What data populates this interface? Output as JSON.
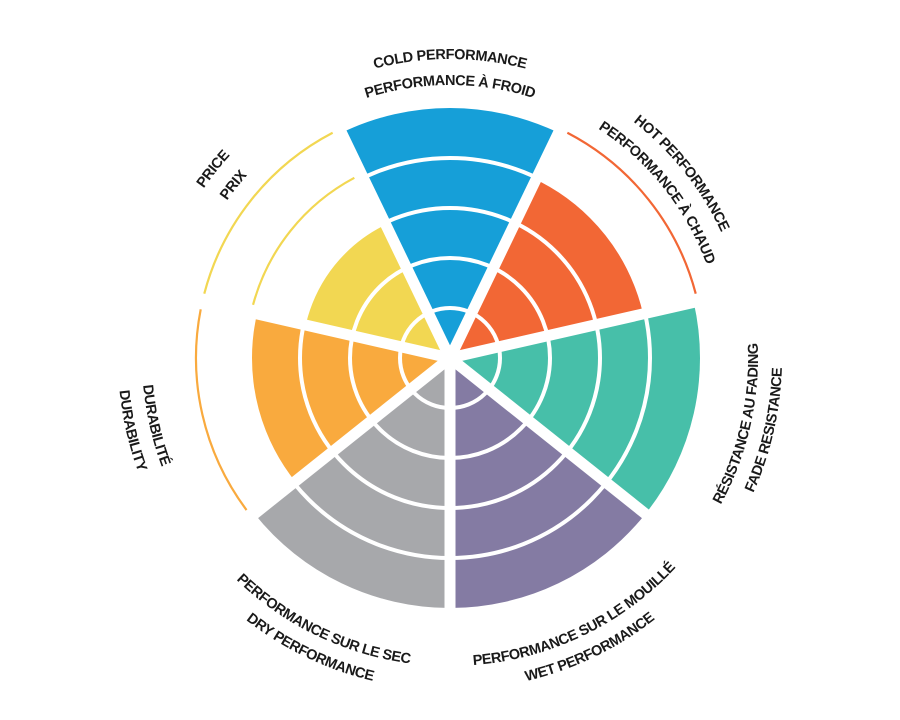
{
  "chart_data": {
    "type": "bar",
    "coordinate_system": "polar",
    "range": [
      0,
      5
    ],
    "grid": true,
    "categories": [
      {
        "key": "cold",
        "label_1": "COLD PERFORMANCE",
        "label_2": "PERFORMANCE À FROID",
        "value": 5,
        "color": "#169fd8"
      },
      {
        "key": "hot",
        "label_1": "HOT PERFORMANCE",
        "label_2": "PERFORMANCE À CHAUD",
        "value": 4,
        "color": "#f26735"
      },
      {
        "key": "fade",
        "label_1": "RÉSISTANCE AU FADING",
        "label_2": "FADE RESISTANCE",
        "value": 5,
        "color": "#47bfa9"
      },
      {
        "key": "wet",
        "label_1": "PERFORMANCE SUR LE MOUILLÉ",
        "label_2": "WET PERFORMANCE",
        "value": 5,
        "color": "#847ba3"
      },
      {
        "key": "dry",
        "label_1": "PERFORMANCE SUR LE SEC",
        "label_2": "DRY PERFORMANCE",
        "value": 5,
        "color": "#a7a8ab"
      },
      {
        "key": "durability",
        "label_1": "DURABILITÉ",
        "label_2": "DURABILITY",
        "value": 4,
        "color": "#f9aa3e"
      },
      {
        "key": "price",
        "label_1": "PRICE",
        "label_2": "PRIX",
        "value": 3,
        "color": "#f2d752"
      }
    ]
  }
}
